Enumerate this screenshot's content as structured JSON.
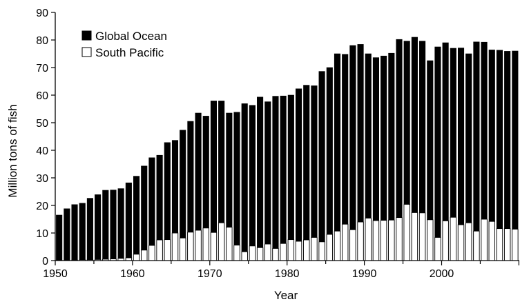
{
  "chart_data": {
    "type": "bar",
    "mode": "overlay",
    "xlabel": "Year",
    "ylabel": "Million tons of fish",
    "xlim": [
      1950,
      2009
    ],
    "ylim": [
      0,
      90
    ],
    "x_ticks": [
      1950,
      1960,
      1970,
      1980,
      1990,
      2000
    ],
    "y_ticks": [
      0,
      10,
      20,
      30,
      40,
      50,
      60,
      70,
      80,
      90
    ],
    "grid": false,
    "legend_position": "top-left",
    "x": [
      1950,
      1951,
      1952,
      1953,
      1954,
      1955,
      1956,
      1957,
      1958,
      1959,
      1960,
      1961,
      1962,
      1963,
      1964,
      1965,
      1966,
      1967,
      1968,
      1969,
      1970,
      1971,
      1972,
      1973,
      1974,
      1975,
      1976,
      1977,
      1978,
      1979,
      1980,
      1981,
      1982,
      1983,
      1984,
      1985,
      1986,
      1987,
      1988,
      1989,
      1990,
      1991,
      1992,
      1993,
      1994,
      1995,
      1996,
      1997,
      1998,
      1999,
      2000,
      2001,
      2002,
      2003,
      2004,
      2005,
      2006,
      2007,
      2008,
      2009
    ],
    "series": [
      {
        "name": "Global Ocean",
        "color": "#000000",
        "values": [
          16.5,
          18.8,
          20.3,
          20.8,
          22.6,
          23.9,
          25.5,
          25.6,
          26.1,
          28.2,
          30.6,
          34.3,
          37.3,
          38.2,
          42.8,
          43.6,
          47.3,
          50.5,
          53.5,
          52.4,
          57.9,
          57.9,
          53.5,
          53.8,
          56.9,
          56.3,
          59.3,
          57.6,
          59.6,
          59.7,
          60.0,
          62.3,
          63.6,
          63.4,
          68.6,
          70.0,
          75.0,
          74.8,
          78.0,
          78.4,
          75.0,
          73.6,
          74.2,
          75.2,
          80.2,
          79.6,
          81.0,
          79.6,
          72.5,
          77.5,
          79.0,
          77.0,
          77.1,
          75.0,
          79.3,
          79.2,
          76.4,
          76.3,
          75.9,
          76.0
        ]
      },
      {
        "name": "South Pacific",
        "color": "#ffffff",
        "values": [
          0.1,
          0.1,
          0.2,
          0.3,
          0.3,
          0.4,
          0.5,
          0.6,
          0.8,
          1.0,
          2.3,
          3.8,
          5.5,
          7.5,
          7.6,
          10.0,
          8.2,
          10.3,
          11.0,
          11.8,
          10.2,
          13.7,
          12.1,
          5.6,
          3.2,
          5.3,
          4.7,
          6.0,
          4.4,
          6.2,
          7.6,
          7.0,
          7.5,
          8.4,
          6.8,
          9.5,
          10.7,
          13.2,
          11.2,
          14.0,
          15.4,
          14.5,
          14.6,
          14.7,
          15.6,
          20.4,
          17.4,
          17.3,
          14.8,
          8.4,
          14.4,
          15.7,
          13.0,
          13.7,
          10.7,
          15.0,
          14.2,
          11.6,
          11.6,
          11.4
        ]
      }
    ]
  }
}
